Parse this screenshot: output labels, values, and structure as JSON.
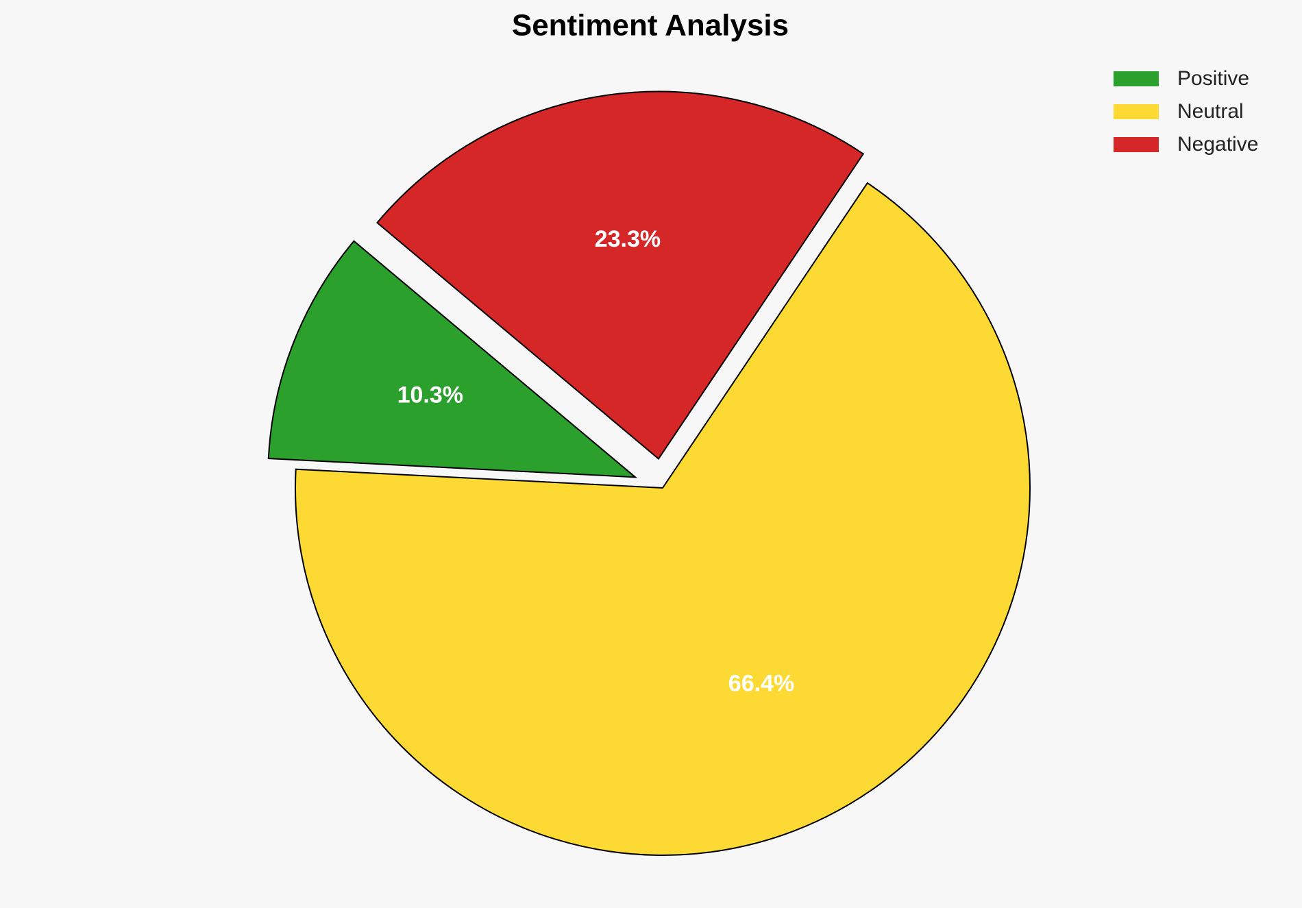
{
  "chart_data": {
    "type": "pie",
    "title": "Sentiment Analysis",
    "categories": [
      "Positive",
      "Neutral",
      "Negative"
    ],
    "values": [
      10.3,
      66.4,
      23.3
    ],
    "value_labels": [
      "10.3%",
      "66.4%",
      "23.3%"
    ],
    "colors": [
      "#2ca02c",
      "#fdd933",
      "#d62728"
    ],
    "legend": "upper right"
  }
}
